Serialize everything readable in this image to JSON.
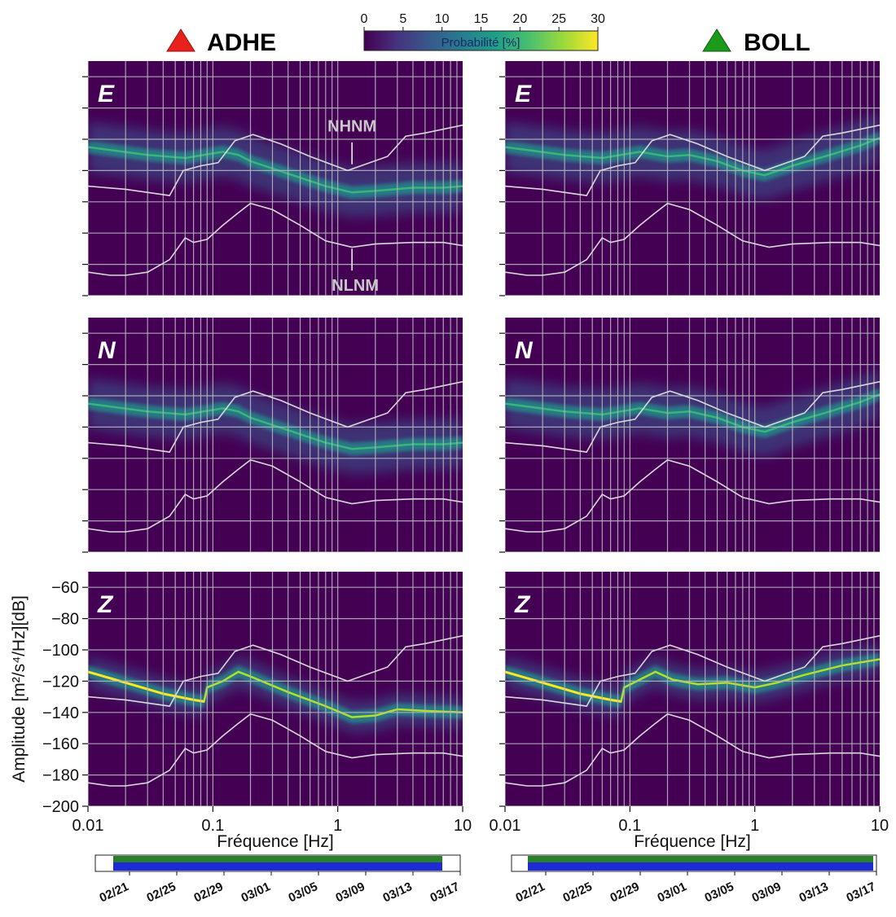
{
  "stations": [
    {
      "name": "ADHE",
      "marker_color": "#e8211d"
    },
    {
      "name": "BOLL",
      "marker_color": "#1b9a1b"
    }
  ],
  "components": [
    "E",
    "N",
    "Z"
  ],
  "colorbar": {
    "label": "Probabilité [%]",
    "ticks": [
      0,
      5,
      10,
      15,
      20,
      25,
      30
    ],
    "range": [
      0,
      30
    ],
    "colormap": "viridis"
  },
  "model_labels": {
    "high": "NHNM",
    "low": "NLNM"
  },
  "axes": {
    "xlabel": "Fréquence [Hz]",
    "ylabel": "Amplitude [m²/s⁴/Hz][dB]",
    "x_scale": "log",
    "xlim": [
      0.01,
      10
    ],
    "ylim": [
      -200,
      -50
    ],
    "xticks": [
      "0.01",
      "0.1",
      "1",
      "10"
    ],
    "yticks": [
      "−60",
      "−80",
      "−100",
      "−120",
      "−140",
      "−160",
      "−180",
      "−200"
    ]
  },
  "timeline": {
    "dates": [
      "02/21",
      "02/25",
      "02/29",
      "03/01",
      "03/05",
      "03/09",
      "03/13",
      "03/17"
    ],
    "bar_colors": [
      "#2a7f2a",
      "#1f2bd6"
    ]
  },
  "chart_data": [
    {
      "type": "heatmap",
      "title": "ADHE",
      "panels": [
        {
          "component": "E",
          "mode": [
            [
              0.01,
              -105
            ],
            [
              0.03,
              -110
            ],
            [
              0.06,
              -112
            ],
            [
              0.12,
              -108
            ],
            [
              0.16,
              -110
            ],
            [
              0.2,
              -114
            ],
            [
              0.4,
              -122
            ],
            [
              0.8,
              -130
            ],
            [
              1.3,
              -134
            ],
            [
              2,
              -133
            ],
            [
              4,
              -131
            ],
            [
              7,
              -131
            ],
            [
              10,
              -130
            ]
          ]
        },
        {
          "component": "N",
          "mode": [
            [
              0.01,
              -105
            ],
            [
              0.03,
              -110
            ],
            [
              0.06,
              -112
            ],
            [
              0.12,
              -108
            ],
            [
              0.16,
              -110
            ],
            [
              0.2,
              -114
            ],
            [
              0.4,
              -122
            ],
            [
              0.8,
              -130
            ],
            [
              1.3,
              -134
            ],
            [
              2,
              -133
            ],
            [
              4,
              -131
            ],
            [
              7,
              -131
            ],
            [
              10,
              -130
            ]
          ]
        },
        {
          "component": "Z",
          "mode": [
            [
              0.01,
              -114
            ],
            [
              0.02,
              -121
            ],
            [
              0.04,
              -128
            ],
            [
              0.07,
              -132
            ],
            [
              0.085,
              -133
            ],
            [
              0.09,
              -124
            ],
            [
              0.12,
              -120
            ],
            [
              0.16,
              -114
            ],
            [
              0.2,
              -117
            ],
            [
              0.4,
              -127
            ],
            [
              0.8,
              -136
            ],
            [
              1.3,
              -143
            ],
            [
              2,
              -142
            ],
            [
              3,
              -138
            ],
            [
              5,
              -139
            ],
            [
              10,
              -140
            ]
          ]
        }
      ],
      "nhnm": [
        [
          0.01,
          -130
        ],
        [
          0.02,
          -132
        ],
        [
          0.045,
          -136
        ],
        [
          0.058,
          -120
        ],
        [
          0.08,
          -117
        ],
        [
          0.11,
          -115
        ],
        [
          0.15,
          -101
        ],
        [
          0.21,
          -97
        ],
        [
          0.35,
          -103
        ],
        [
          0.6,
          -111
        ],
        [
          1.2,
          -120
        ],
        [
          2.5,
          -111
        ],
        [
          3.5,
          -98
        ],
        [
          5,
          -96
        ],
        [
          10,
          -91
        ]
      ],
      "nlnm": [
        [
          0.01,
          -185
        ],
        [
          0.015,
          -187
        ],
        [
          0.02,
          -187
        ],
        [
          0.03,
          -185
        ],
        [
          0.045,
          -177
        ],
        [
          0.06,
          -163
        ],
        [
          0.07,
          -166
        ],
        [
          0.09,
          -164
        ],
        [
          0.12,
          -155
        ],
        [
          0.16,
          -147
        ],
        [
          0.2,
          -141
        ],
        [
          0.3,
          -145
        ],
        [
          0.5,
          -155
        ],
        [
          0.8,
          -165
        ],
        [
          1.3,
          -169
        ],
        [
          2,
          -167
        ],
        [
          4,
          -166
        ],
        [
          7,
          -166
        ],
        [
          10,
          -168
        ]
      ]
    },
    {
      "type": "heatmap",
      "title": "BOLL",
      "panels": [
        {
          "component": "E",
          "mode": [
            [
              0.01,
              -105
            ],
            [
              0.03,
              -110
            ],
            [
              0.06,
              -112
            ],
            [
              0.12,
              -108
            ],
            [
              0.2,
              -111
            ],
            [
              0.3,
              -110
            ],
            [
              0.5,
              -114
            ],
            [
              0.8,
              -120
            ],
            [
              1.2,
              -123
            ],
            [
              2,
              -117
            ],
            [
              4,
              -110
            ],
            [
              7,
              -104
            ],
            [
              10,
              -99
            ]
          ]
        },
        {
          "component": "N",
          "mode": [
            [
              0.01,
              -105
            ],
            [
              0.03,
              -110
            ],
            [
              0.06,
              -112
            ],
            [
              0.12,
              -108
            ],
            [
              0.2,
              -111
            ],
            [
              0.3,
              -110
            ],
            [
              0.5,
              -114
            ],
            [
              0.8,
              -120
            ],
            [
              1.2,
              -123
            ],
            [
              2,
              -117
            ],
            [
              4,
              -110
            ],
            [
              7,
              -104
            ],
            [
              10,
              -99
            ]
          ]
        },
        {
          "component": "Z",
          "mode": [
            [
              0.01,
              -114
            ],
            [
              0.02,
              -121
            ],
            [
              0.04,
              -128
            ],
            [
              0.07,
              -132
            ],
            [
              0.085,
              -133
            ],
            [
              0.09,
              -124
            ],
            [
              0.12,
              -119
            ],
            [
              0.16,
              -114
            ],
            [
              0.22,
              -119
            ],
            [
              0.35,
              -122
            ],
            [
              0.6,
              -121
            ],
            [
              1,
              -124
            ],
            [
              1.5,
              -121
            ],
            [
              2.5,
              -116
            ],
            [
              5,
              -110
            ],
            [
              10,
              -106
            ]
          ]
        }
      ],
      "nhnm": [
        [
          0.01,
          -130
        ],
        [
          0.02,
          -132
        ],
        [
          0.045,
          -136
        ],
        [
          0.058,
          -120
        ],
        [
          0.08,
          -117
        ],
        [
          0.11,
          -115
        ],
        [
          0.15,
          -101
        ],
        [
          0.21,
          -97
        ],
        [
          0.35,
          -103
        ],
        [
          0.6,
          -111
        ],
        [
          1.2,
          -120
        ],
        [
          2.5,
          -111
        ],
        [
          3.5,
          -98
        ],
        [
          5,
          -96
        ],
        [
          10,
          -91
        ]
      ],
      "nlnm": [
        [
          0.01,
          -185
        ],
        [
          0.015,
          -187
        ],
        [
          0.02,
          -187
        ],
        [
          0.03,
          -185
        ],
        [
          0.045,
          -177
        ],
        [
          0.06,
          -163
        ],
        [
          0.07,
          -166
        ],
        [
          0.09,
          -164
        ],
        [
          0.12,
          -155
        ],
        [
          0.16,
          -147
        ],
        [
          0.2,
          -141
        ],
        [
          0.3,
          -145
        ],
        [
          0.5,
          -155
        ],
        [
          0.8,
          -165
        ],
        [
          1.3,
          -169
        ],
        [
          2,
          -167
        ],
        [
          4,
          -166
        ],
        [
          7,
          -166
        ],
        [
          10,
          -168
        ]
      ]
    }
  ]
}
